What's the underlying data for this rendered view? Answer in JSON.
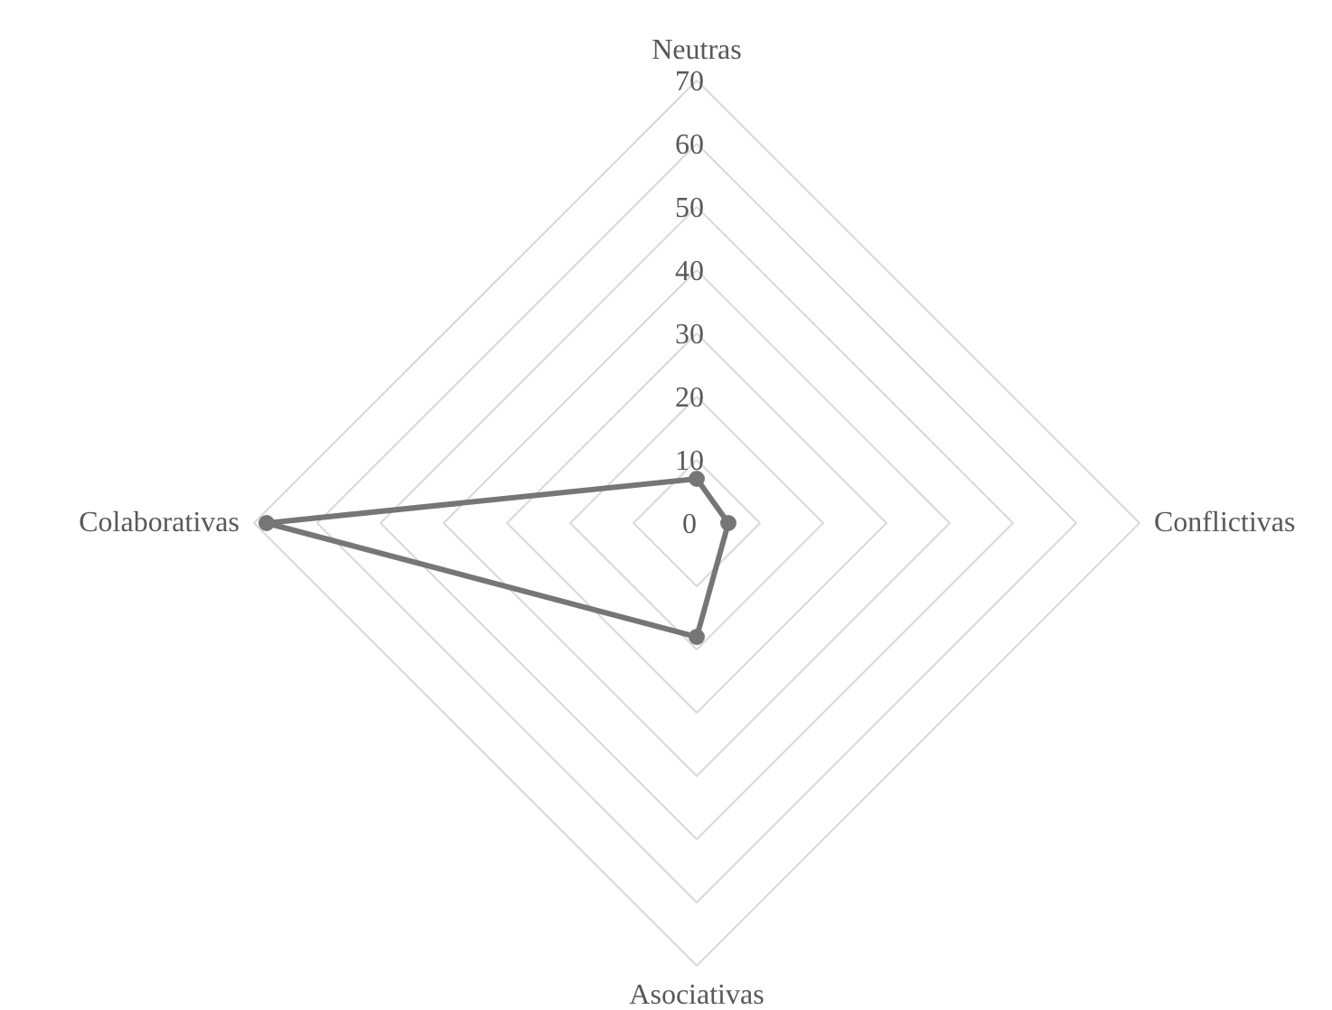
{
  "chart_data": {
    "type": "radar",
    "categories": [
      "Neutras",
      "Conflictivas",
      "Asociativas",
      "Colaborativas"
    ],
    "series": [
      {
        "color": "#767676",
        "values": [
          7,
          5,
          18,
          68
        ]
      }
    ],
    "ylim": [
      0,
      70
    ],
    "yticks": [
      0,
      10,
      20,
      30,
      40,
      50,
      60,
      70
    ],
    "grid": true,
    "marker": "circle"
  }
}
